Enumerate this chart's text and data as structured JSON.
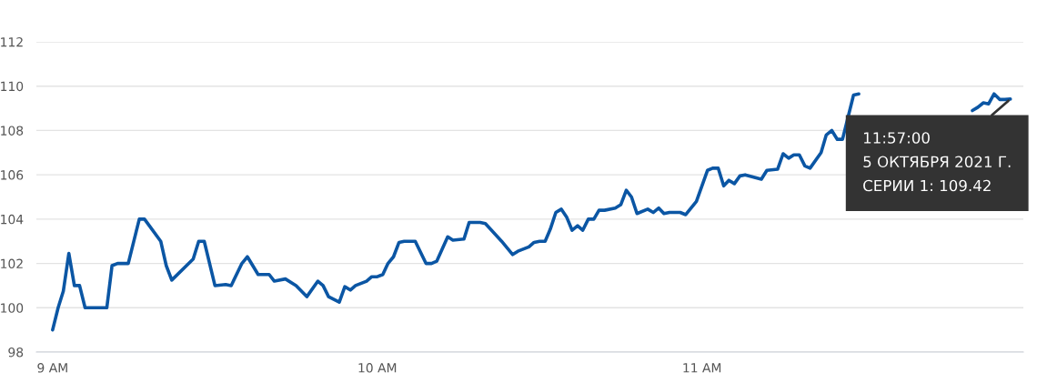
{
  "chart_data": {
    "type": "line",
    "x": [
      9.0,
      9.017,
      9.033,
      9.05,
      9.067,
      9.083,
      9.1,
      9.167,
      9.183,
      9.2,
      9.233,
      9.267,
      9.283,
      9.333,
      9.35,
      9.367,
      9.433,
      9.45,
      9.467,
      9.5,
      9.533,
      9.55,
      9.583,
      9.6,
      9.633,
      9.667,
      9.683,
      9.717,
      9.75,
      9.783,
      9.817,
      9.833,
      9.85,
      9.883,
      9.9,
      9.917,
      9.933,
      9.967,
      9.983,
      10.0,
      10.017,
      10.033,
      10.05,
      10.067,
      10.083,
      10.117,
      10.15,
      10.167,
      10.183,
      10.217,
      10.233,
      10.267,
      10.283,
      10.317,
      10.333,
      10.383,
      10.417,
      10.433,
      10.467,
      10.483,
      10.5,
      10.517,
      10.533,
      10.55,
      10.567,
      10.583,
      10.6,
      10.617,
      10.633,
      10.65,
      10.667,
      10.683,
      10.7,
      10.733,
      10.75,
      10.767,
      10.783,
      10.8,
      10.833,
      10.85,
      10.867,
      10.883,
      10.9,
      10.933,
      10.95,
      10.983,
      11.017,
      11.033,
      11.05,
      11.067,
      11.083,
      11.1,
      11.117,
      11.133,
      11.183,
      11.2,
      11.233,
      11.25,
      11.267,
      11.283,
      11.3,
      11.317,
      11.333,
      11.367,
      11.383,
      11.4,
      11.417,
      11.433,
      11.467,
      11.483,
      11.5,
      11.833,
      11.85,
      11.867,
      11.883,
      11.9,
      11.917,
      11.933,
      11.95
    ],
    "series": [
      {
        "color": "#0b56a4",
        "values": [
          99.0,
          100.0,
          100.75,
          102.45,
          101.0,
          101.0,
          100.0,
          100.0,
          101.9,
          102.0,
          102.0,
          104.0,
          104.0,
          103.0,
          101.9,
          101.25,
          102.2,
          103.0,
          103.0,
          101.0,
          101.05,
          101.0,
          102.0,
          102.3,
          101.5,
          101.5,
          101.2,
          101.3,
          101.0,
          100.5,
          101.2,
          101.0,
          100.5,
          100.25,
          100.95,
          100.8,
          101.0,
          101.2,
          101.4,
          101.4,
          101.5,
          102.0,
          102.3,
          102.95,
          103.0,
          103.0,
          102.0,
          102.0,
          102.1,
          103.2,
          103.05,
          103.1,
          103.85,
          103.85,
          103.8,
          103.0,
          102.4,
          102.55,
          102.75,
          102.95,
          103.0,
          103.0,
          103.55,
          104.3,
          104.45,
          104.1,
          103.5,
          103.7,
          103.5,
          104.0,
          104.0,
          104.4,
          104.4,
          104.5,
          104.65,
          105.3,
          105.0,
          104.25,
          104.45,
          104.3,
          104.5,
          104.25,
          104.3,
          104.3,
          104.2,
          104.8,
          106.2,
          106.3,
          106.3,
          105.5,
          105.75,
          105.6,
          105.95,
          106.0,
          105.8,
          106.2,
          106.25,
          106.95,
          106.75,
          106.9,
          106.9,
          106.4,
          106.3,
          107.0,
          107.8,
          108.0,
          107.6,
          107.6,
          109.6,
          109.65,
          null,
          108.9,
          109.05,
          109.25,
          109.2,
          109.65,
          109.4,
          109.4,
          109.42
        ]
      }
    ],
    "xlim": [
      8.95,
      11.99
    ],
    "xticks": [
      {
        "value": 9,
        "label": "9 AM"
      },
      {
        "value": 10,
        "label": "10 AM"
      },
      {
        "value": 11,
        "label": "11 AM"
      }
    ],
    "ylim": [
      98,
      112
    ],
    "yticks": [
      98,
      100,
      102,
      104,
      106,
      108,
      110,
      112
    ],
    "grid": "y",
    "marker": "none",
    "line_style": "solid",
    "annotations": [
      {
        "text": "11:57:00\n5 ОКТЯБРЯ 2021 Г.\nСЕРИИ 1: 109.42",
        "x": 11.95,
        "y": 109.42
      }
    ]
  }
}
